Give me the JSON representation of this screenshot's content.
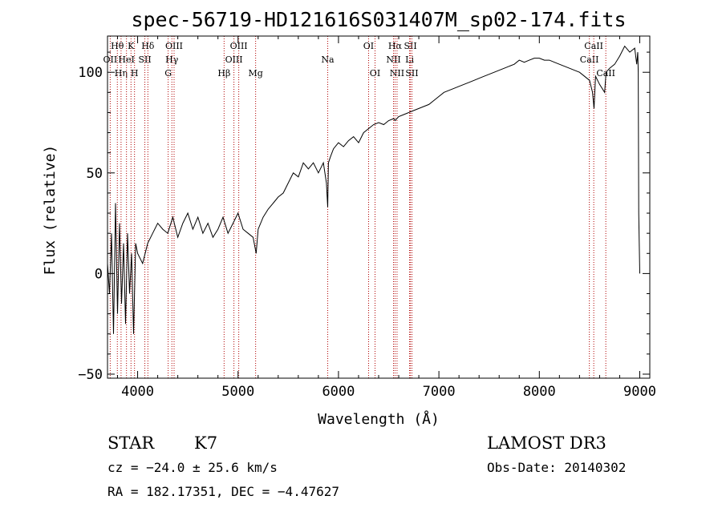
{
  "chart_data": {
    "type": "line",
    "title": "spec-56719-HD121616S031407M_sp02-174.fits",
    "xlabel": "Wavelength (Å)",
    "ylabel": "Flux (relative)",
    "xlim": [
      3700,
      9100
    ],
    "ylim": [
      -52,
      118
    ],
    "x_ticks": [
      4000,
      5000,
      6000,
      7000,
      8000,
      9000
    ],
    "y_ticks": [
      -50,
      0,
      50,
      100
    ],
    "x_tick_labels": [
      "4000",
      "5000",
      "6000",
      "7000",
      "8000",
      "9000"
    ],
    "y_tick_labels": [
      "−50",
      "0",
      "50",
      "100"
    ],
    "series": [
      {
        "name": "flux",
        "x": [
          3700,
          3720,
          3740,
          3760,
          3780,
          3800,
          3820,
          3840,
          3860,
          3880,
          3900,
          3920,
          3940,
          3960,
          3980,
          4000,
          4050,
          4100,
          4150,
          4200,
          4250,
          4300,
          4350,
          4400,
          4450,
          4500,
          4550,
          4600,
          4650,
          4700,
          4750,
          4800,
          4850,
          4900,
          4950,
          5000,
          5050,
          5100,
          5150,
          5180,
          5200,
          5250,
          5300,
          5350,
          5400,
          5450,
          5500,
          5550,
          5600,
          5650,
          5700,
          5750,
          5800,
          5850,
          5880,
          5893,
          5900,
          5920,
          5950,
          6000,
          6050,
          6100,
          6150,
          6200,
          6250,
          6300,
          6350,
          6400,
          6450,
          6500,
          6550,
          6563,
          6600,
          6650,
          6700,
          6750,
          6800,
          6850,
          6900,
          6950,
          7000,
          7050,
          7100,
          7150,
          7200,
          7250,
          7300,
          7350,
          7400,
          7450,
          7500,
          7550,
          7600,
          7650,
          7700,
          7750,
          7800,
          7850,
          7900,
          7950,
          8000,
          8050,
          8100,
          8150,
          8200,
          8250,
          8300,
          8350,
          8400,
          8450,
          8500,
          8530,
          8545,
          8560,
          8600,
          8650,
          8665,
          8700,
          8750,
          8800,
          8850,
          8900,
          8950,
          8970,
          8980,
          8985,
          8990,
          9000
        ],
        "values": [
          5,
          -10,
          20,
          -30,
          35,
          -20,
          25,
          -15,
          15,
          -25,
          20,
          -10,
          10,
          -30,
          15,
          10,
          5,
          15,
          20,
          25,
          22,
          20,
          28,
          18,
          25,
          30,
          22,
          28,
          20,
          25,
          18,
          22,
          28,
          20,
          25,
          30,
          22,
          20,
          18,
          10,
          22,
          28,
          32,
          35,
          38,
          40,
          45,
          50,
          48,
          55,
          52,
          55,
          50,
          55,
          45,
          33,
          55,
          58,
          62,
          65,
          63,
          66,
          68,
          65,
          70,
          72,
          74,
          75,
          74,
          76,
          77,
          76,
          78,
          79,
          80,
          81,
          82,
          83,
          84,
          86,
          88,
          90,
          91,
          92,
          93,
          94,
          95,
          96,
          97,
          98,
          99,
          100,
          101,
          102,
          103,
          104,
          106,
          105,
          106,
          107,
          107,
          106,
          106,
          105,
          104,
          103,
          102,
          101,
          100,
          98,
          96,
          90,
          82,
          98,
          94,
          90,
          100,
          102,
          104,
          108,
          113,
          110,
          112,
          104,
          110,
          100,
          30,
          0
        ]
      }
    ],
    "spectral_lines": [
      {
        "label": "Hθ",
        "wavelength": 3798,
        "row": 0
      },
      {
        "label": "OII",
        "wavelength": 3727,
        "row": 1
      },
      {
        "label": "Hη",
        "wavelength": 3835,
        "row": 2
      },
      {
        "label": "HeI",
        "wavelength": 3889,
        "row": 1
      },
      {
        "label": "K",
        "wavelength": 3934,
        "row": 0
      },
      {
        "label": "H",
        "wavelength": 3969,
        "row": 2
      },
      {
        "label": "SII",
        "wavelength": 4072,
        "row": 1
      },
      {
        "label": "Hδ",
        "wavelength": 4102,
        "row": 0
      },
      {
        "label": "G",
        "wavelength": 4304,
        "row": 2
      },
      {
        "label": "Hγ",
        "wavelength": 4341,
        "row": 1
      },
      {
        "label": "OIII",
        "wavelength": 4363,
        "row": 0
      },
      {
        "label": "Hβ",
        "wavelength": 4861,
        "row": 2
      },
      {
        "label": "OIII",
        "wavelength": 4959,
        "row": 1
      },
      {
        "label": "OIII",
        "wavelength": 5007,
        "row": 0
      },
      {
        "label": "Mg",
        "wavelength": 5175,
        "row": 2
      },
      {
        "label": "Na",
        "wavelength": 5893,
        "row": 1
      },
      {
        "label": "OI",
        "wavelength": 6300,
        "row": 0
      },
      {
        "label": "OI",
        "wavelength": 6364,
        "row": 2
      },
      {
        "label": "NII",
        "wavelength": 6548,
        "row": 1
      },
      {
        "label": "Hα",
        "wavelength": 6563,
        "row": 0
      },
      {
        "label": "NII",
        "wavelength": 6583,
        "row": 2
      },
      {
        "label": "Li",
        "wavelength": 6708,
        "row": 1
      },
      {
        "label": "SII",
        "wavelength": 6716,
        "row": 0
      },
      {
        "label": "SII",
        "wavelength": 6731,
        "row": 2
      },
      {
        "label": "CaII",
        "wavelength": 8498,
        "row": 1
      },
      {
        "label": "CaII",
        "wavelength": 8542,
        "row": 0
      },
      {
        "label": "CaII",
        "wavelength": 8662,
        "row": 2
      }
    ]
  },
  "info": {
    "object_class": "STAR",
    "subclass": "K7",
    "survey": "LAMOST DR3",
    "redshift": "cz = −24.0 ± 25.6 km/s",
    "obs_date": "Obs-Date: 20140302",
    "coords": "RA = 182.17351, DEC =  −4.47627"
  }
}
